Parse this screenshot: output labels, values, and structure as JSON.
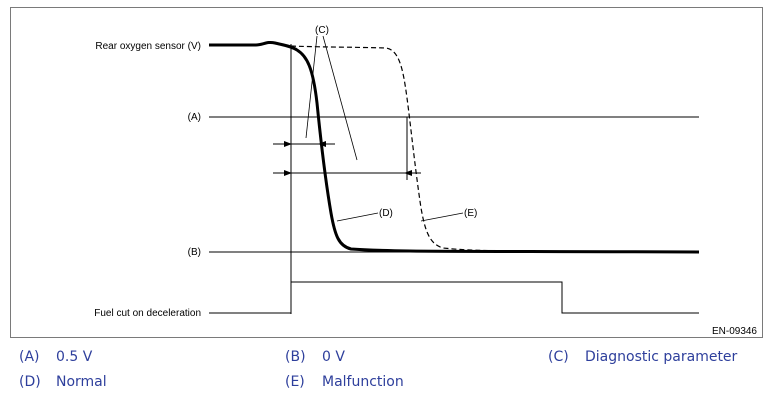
{
  "diagram": {
    "labels": {
      "rear_oxygen_sensor": "Rear oxygen sensor (V)",
      "a": "(A)",
      "b": "(B)",
      "c": "(C)",
      "d": "(D)",
      "e": "(E)",
      "fuel_cut": "Fuel cut on deceleration",
      "figure_code": "EN-09346"
    }
  },
  "legend": [
    {
      "key": "(A)",
      "text": "0.5 V"
    },
    {
      "key": "(B)",
      "text": "0 V"
    },
    {
      "key": "(C)",
      "text": "Diagnostic parameter"
    },
    {
      "key": "(D)",
      "text": "Normal"
    },
    {
      "key": "(E)",
      "text": "Malfunction"
    }
  ]
}
